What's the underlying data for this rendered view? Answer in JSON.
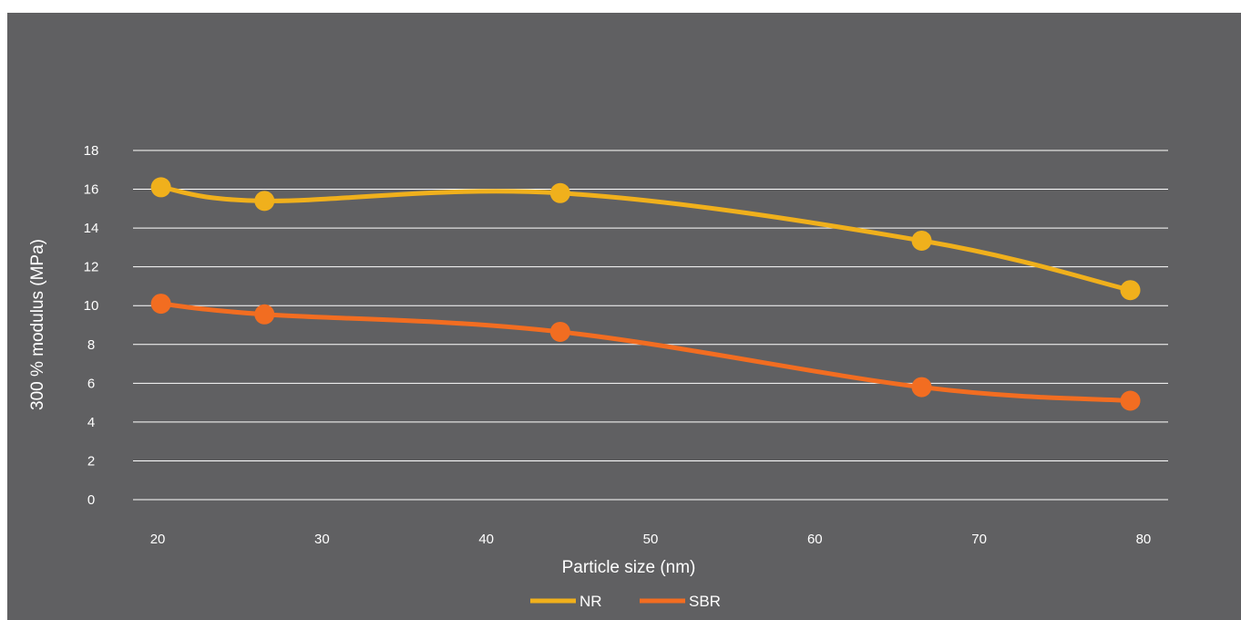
{
  "chart_data": {
    "type": "line",
    "xlabel": "Particle size (nm)",
    "ylabel": "300 % modulus (MPa)",
    "xlim": [
      18.5,
      81.5
    ],
    "ylim": [
      0,
      18
    ],
    "x_ticks": [
      20,
      30,
      40,
      50,
      60,
      70,
      80
    ],
    "y_ticks": [
      0,
      2,
      4,
      6,
      8,
      10,
      12,
      14,
      16,
      18
    ],
    "grid": true,
    "legend_position": "bottom",
    "series": [
      {
        "name": "NR",
        "color": "#f0b01c",
        "points": [
          [
            20.2,
            16.1
          ],
          [
            26.5,
            15.4
          ],
          [
            44.5,
            15.8
          ],
          [
            66.5,
            13.35
          ],
          [
            79.2,
            10.8
          ]
        ]
      },
      {
        "name": "SBR",
        "color": "#f26d21",
        "points": [
          [
            20.2,
            10.1
          ],
          [
            26.5,
            9.55
          ],
          [
            44.5,
            8.65
          ],
          [
            66.5,
            5.8
          ],
          [
            79.2,
            5.1
          ]
        ]
      }
    ]
  }
}
